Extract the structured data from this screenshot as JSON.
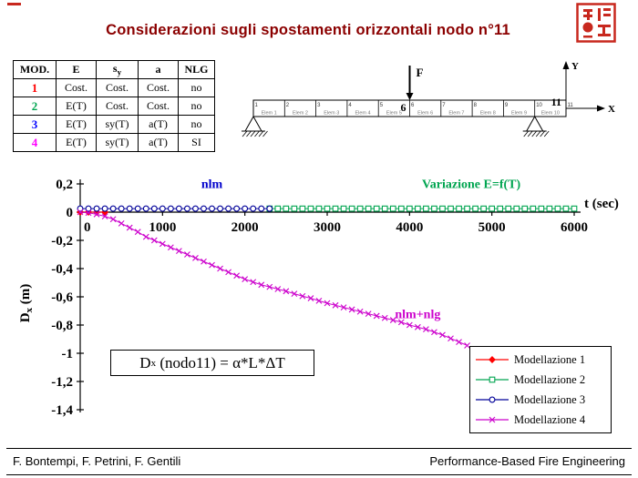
{
  "slide": {
    "title": "Considerazioni sugli spostamenti orizzontali nodo n°11",
    "title_color": "#8b0000",
    "footer_left": "F. Bontempi, F. Petrini, F. Gentili",
    "footer_right": "Performance-Based Fire Engineering"
  },
  "model_table": {
    "columns": [
      {
        "label": "MOD."
      },
      {
        "label": "E"
      },
      {
        "label": "s",
        "sub": "y"
      },
      {
        "label": "a"
      },
      {
        "label": "NLG"
      }
    ],
    "rows": [
      {
        "color": "#ff0000",
        "cells": [
          "1",
          "Cost.",
          "Cost.",
          "Cost.",
          "no"
        ]
      },
      {
        "color": "#00a550",
        "cells": [
          "2",
          "E(T)",
          "Cost.",
          "Cost.",
          "no"
        ]
      },
      {
        "color": "#0000ff",
        "cells": [
          "3",
          "E(T)",
          "sy(T)",
          "a(T)",
          "no"
        ]
      },
      {
        "color": "#ff00ff",
        "cells": [
          "4",
          "E(T)",
          "sy(T)",
          "a(T)",
          "SI"
        ]
      }
    ]
  },
  "diagram": {
    "force_label": "F",
    "x_axis_label": "X",
    "y_axis_label": "Y",
    "node_6_label": "6",
    "node_11_label": "11",
    "node_labels": [
      "1",
      "2",
      "3",
      "4",
      "5",
      "6",
      "7",
      "8",
      "9",
      "10",
      "11"
    ],
    "element_labels": [
      "Elem 1",
      "Elem 2",
      "Elem 3",
      "Elem 4",
      "Elem 5",
      "Elem 6",
      "Elem 7",
      "Elem 8",
      "Elem 9",
      "Elem 10"
    ]
  },
  "formula": {
    "base": "D",
    "sub": "x",
    "rest": " (nodo11) = α*L*ΔT"
  },
  "chart_data": {
    "type": "line",
    "title": "",
    "xlabel": "t (sec)",
    "ylabel": "Dx (m)",
    "ylabel_base": "D",
    "ylabel_sub": "x",
    "ylabel_unit": " (m)",
    "xlim": [
      0,
      6000
    ],
    "ylim": [
      -1.4,
      0.2
    ],
    "grid": false,
    "legend_position": "bottom-right",
    "x_ticks": [
      {
        "v": 0,
        "label": "0"
      },
      {
        "v": 1000,
        "label": "1000"
      },
      {
        "v": 2000,
        "label": "2000"
      },
      {
        "v": 3000,
        "label": "3000"
      },
      {
        "v": 4000,
        "label": "4000"
      },
      {
        "v": 5000,
        "label": "5000"
      },
      {
        "v": 6000,
        "label": "6000"
      }
    ],
    "y_ticks": [
      {
        "v": 0.2,
        "label": "0,2"
      },
      {
        "v": 0,
        "label": "0"
      },
      {
        "v": -0.2,
        "label": "-0,2"
      },
      {
        "v": -0.4,
        "label": "-0,4"
      },
      {
        "v": -0.6,
        "label": "-0,6"
      },
      {
        "v": -0.8,
        "label": "-0,8"
      },
      {
        "v": -1,
        "label": "-1"
      },
      {
        "v": -1.2,
        "label": "-1,2"
      },
      {
        "v": -1.4,
        "label": "-1,4"
      }
    ],
    "annotations": [
      {
        "text": "nlm",
        "x": 1600,
        "y": 0.17,
        "color": "#0000cc"
      },
      {
        "text": "Variazione E=f(T)",
        "x": 4750,
        "y": 0.17,
        "color": "#00a550"
      },
      {
        "text": "nlm+nlg",
        "x": 4100,
        "y": -0.75,
        "color": "#cc00cc"
      }
    ],
    "series": [
      {
        "name": "Modellazione 1",
        "color": "#ff0000",
        "marker": "diamond",
        "x": [
          0,
          100,
          200,
          300
        ],
        "y": 0
      },
      {
        "name": "Modellazione 2",
        "color": "#00a550",
        "marker": "square",
        "x": [
          2300,
          2400,
          2500,
          2600,
          2700,
          2800,
          2900,
          3000,
          3100,
          3200,
          3300,
          3400,
          3500,
          3600,
          3700,
          3800,
          3900,
          4000,
          4100,
          4200,
          4300,
          4400,
          4500,
          4600,
          4700,
          4800,
          4900,
          5000,
          5100,
          5200,
          5300,
          5400,
          5500,
          5600,
          5700,
          5800,
          5900,
          6000
        ],
        "y": 0.025
      },
      {
        "name": "Modellazione 3",
        "color": "#000099",
        "marker": "circle",
        "x": [
          0,
          100,
          200,
          300,
          400,
          500,
          600,
          700,
          800,
          900,
          1000,
          1100,
          1200,
          1300,
          1400,
          1500,
          1600,
          1700,
          1800,
          1900,
          2000,
          2100,
          2200,
          2300
        ],
        "y": 0.025
      },
      {
        "name": "Modellazione 4",
        "color": "#cc00cc",
        "marker": "x",
        "x": [
          0,
          100,
          200,
          300,
          400,
          500,
          600,
          700,
          800,
          900,
          1000,
          1100,
          1200,
          1300,
          1400,
          1500,
          1600,
          1700,
          1800,
          1900,
          2000,
          2100,
          2200,
          2300,
          2400,
          2500,
          2600,
          2700,
          2800,
          2900,
          3000,
          3100,
          3200,
          3300,
          3400,
          3500,
          3600,
          3700,
          3800,
          3900,
          4000,
          4100,
          4200,
          4300,
          4400,
          4500,
          4600,
          4700
        ],
        "y": [
          0,
          -0.005,
          -0.015,
          -0.03,
          -0.05,
          -0.08,
          -0.11,
          -0.14,
          -0.175,
          -0.2,
          -0.225,
          -0.25,
          -0.275,
          -0.3,
          -0.325,
          -0.35,
          -0.375,
          -0.4,
          -0.425,
          -0.45,
          -0.475,
          -0.495,
          -0.515,
          -0.53,
          -0.545,
          -0.56,
          -0.578,
          -0.595,
          -0.61,
          -0.628,
          -0.645,
          -0.66,
          -0.675,
          -0.69,
          -0.705,
          -0.72,
          -0.735,
          -0.75,
          -0.765,
          -0.78,
          -0.8,
          -0.815,
          -0.83,
          -0.85,
          -0.87,
          -0.895,
          -0.92,
          -0.945
        ]
      }
    ]
  }
}
